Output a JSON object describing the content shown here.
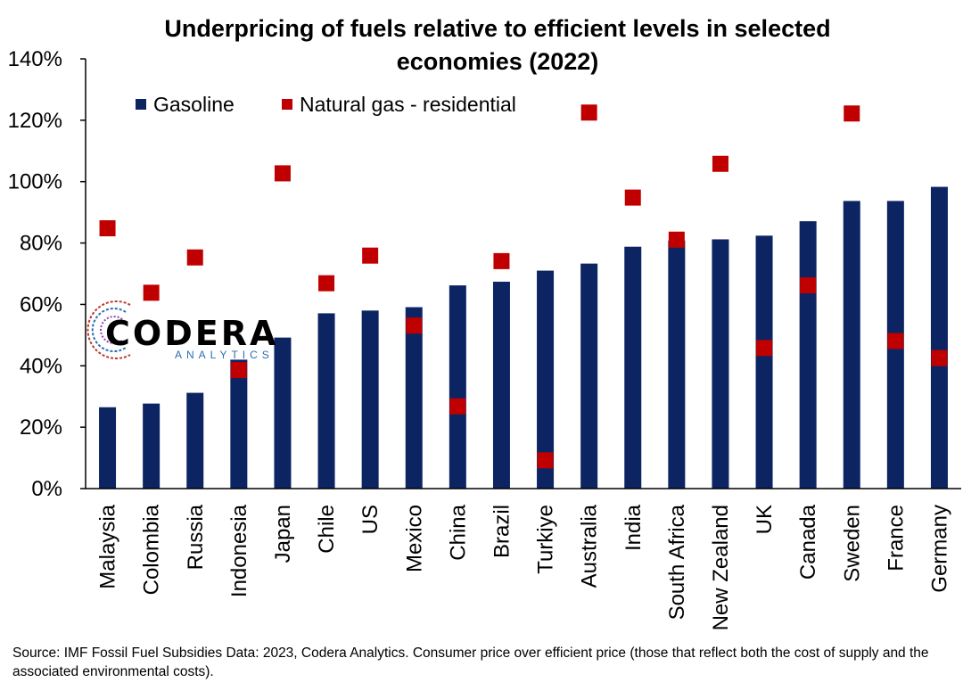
{
  "chart_data": {
    "type": "bar",
    "title_line1": "Underpricing of fuels relative to efficient levels in selected",
    "title_line2": "economies (2022)",
    "xlabel": "",
    "ylabel": "",
    "ylim": [
      0,
      140
    ],
    "yticks": [
      0,
      20,
      40,
      60,
      80,
      100,
      120,
      140
    ],
    "ytick_labels": [
      "0%",
      "20%",
      "40%",
      "60%",
      "80%",
      "100%",
      "120%",
      "140%"
    ],
    "categories": [
      "Malaysia",
      "Colombia",
      "Russia",
      "Indonesia",
      "Japan",
      "Chile",
      "US",
      "Mexico",
      "China",
      "Brazil",
      "Turkiye",
      "Australia",
      "India",
      "South Africa",
      "New Zealand",
      "UK",
      "Canada",
      "Sweden",
      "France",
      "Germany"
    ],
    "series": [
      {
        "name": "Gasoline",
        "kind": "bar",
        "color": "#0d2463",
        "values": [
          26.5,
          27.7,
          31.2,
          42,
          49.2,
          57.1,
          58,
          59.1,
          66.2,
          67.4,
          71,
          73.3,
          78.8,
          80.8,
          81.2,
          82.4,
          87.1,
          93.7,
          93.7,
          98.3
        ]
      },
      {
        "name": "Natural gas - residential",
        "kind": "marker",
        "color": "#c00000",
        "values": [
          84.8,
          63.8,
          75.3,
          38.6,
          102.7,
          66.9,
          75.9,
          53.1,
          26.8,
          74.1,
          9.2,
          122.5,
          94.8,
          81.1,
          105.8,
          45.8,
          66.2,
          122.2,
          48.1,
          42.5
        ]
      }
    ],
    "legend_position": "top-left",
    "grid": false
  },
  "logo": {
    "name": "CODERA",
    "sub": "ANALYTICS"
  },
  "source_text": "Source: IMF Fossil Fuel Subsidies Data: 2023, Codera Analytics. Consumer price over efficient price (those that reflect both the cost of supply and the associated environmental costs)."
}
